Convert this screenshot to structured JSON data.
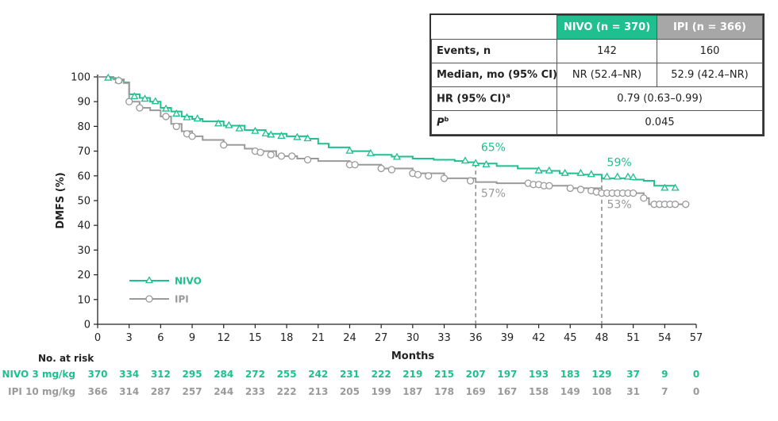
{
  "chart_data": {
    "type": "line",
    "xlabel": "Months",
    "ylabel": "DMFS (%)",
    "xlim": [
      0,
      57
    ],
    "ylim": [
      0,
      100
    ],
    "x_ticks": [
      0,
      3,
      6,
      9,
      12,
      15,
      18,
      21,
      24,
      27,
      30,
      33,
      36,
      39,
      42,
      45,
      48,
      51,
      54,
      57
    ],
    "y_ticks": [
      0,
      10,
      20,
      30,
      40,
      50,
      60,
      70,
      80,
      90,
      100
    ],
    "colors": {
      "nivo": "#1fbf8f",
      "ipi": "#9a9a9a",
      "reference": "#777777"
    },
    "series": [
      {
        "name": "NIVO",
        "marker": "triangle",
        "points": [
          [
            0,
            100
          ],
          [
            1,
            99.5
          ],
          [
            2,
            98.5
          ],
          [
            2.5,
            97.8
          ],
          [
            3,
            93
          ],
          [
            4,
            91.5
          ],
          [
            5,
            90
          ],
          [
            6,
            87.5
          ],
          [
            7,
            86
          ],
          [
            8,
            84
          ],
          [
            9,
            83
          ],
          [
            10,
            82
          ],
          [
            12,
            80.3
          ],
          [
            14,
            78.5
          ],
          [
            16,
            77
          ],
          [
            18,
            76
          ],
          [
            20,
            75
          ],
          [
            21,
            73
          ],
          [
            22,
            71.5
          ],
          [
            24,
            70
          ],
          [
            26,
            68.5
          ],
          [
            28,
            67.8
          ],
          [
            30,
            67
          ],
          [
            32,
            66.5
          ],
          [
            34,
            66
          ],
          [
            35,
            65.5
          ],
          [
            36,
            65
          ],
          [
            38,
            64
          ],
          [
            40,
            63
          ],
          [
            42,
            62
          ],
          [
            44,
            61
          ],
          [
            46,
            60.5
          ],
          [
            48,
            59
          ],
          [
            50,
            59
          ],
          [
            51,
            58.5
          ],
          [
            52,
            58
          ],
          [
            53,
            56
          ],
          [
            55,
            55
          ]
        ],
        "censor_marks": [
          [
            1,
            99.5
          ],
          [
            2,
            98.5
          ],
          [
            3.5,
            92
          ],
          [
            4.5,
            91
          ],
          [
            5.5,
            90
          ],
          [
            6.5,
            87
          ],
          [
            7.5,
            85
          ],
          [
            8.5,
            83.5
          ],
          [
            9.5,
            83
          ],
          [
            11.5,
            81
          ],
          [
            12.5,
            80.3
          ],
          [
            13.5,
            79
          ],
          [
            15,
            78
          ],
          [
            16,
            77
          ],
          [
            16.5,
            76.5
          ],
          [
            17.5,
            76
          ],
          [
            19,
            75.5
          ],
          [
            20,
            75
          ],
          [
            24,
            70
          ],
          [
            26,
            69
          ],
          [
            28.5,
            67.5
          ],
          [
            35,
            66
          ],
          [
            36,
            65
          ],
          [
            37,
            64.5
          ],
          [
            42,
            62
          ],
          [
            43,
            62
          ],
          [
            44.5,
            61
          ],
          [
            46,
            61
          ],
          [
            47,
            60.5
          ],
          [
            48.5,
            59.5
          ],
          [
            49.5,
            59.5
          ],
          [
            50.5,
            59.5
          ],
          [
            51,
            59.3
          ],
          [
            54,
            55
          ],
          [
            55,
            55
          ]
        ]
      },
      {
        "name": "IPI",
        "marker": "circle",
        "points": [
          [
            0,
            100
          ],
          [
            1.5,
            99
          ],
          [
            2.5,
            97.5
          ],
          [
            3,
            90
          ],
          [
            4,
            87.5
          ],
          [
            5,
            86.5
          ],
          [
            6,
            84
          ],
          [
            7,
            81
          ],
          [
            8,
            78
          ],
          [
            9,
            76
          ],
          [
            10,
            74.5
          ],
          [
            12,
            72.5
          ],
          [
            14,
            71
          ],
          [
            15,
            70
          ],
          [
            17,
            68
          ],
          [
            19,
            67
          ],
          [
            21,
            66
          ],
          [
            24,
            64.5
          ],
          [
            27,
            63
          ],
          [
            30,
            61
          ],
          [
            33,
            59
          ],
          [
            36,
            57.5
          ],
          [
            38,
            57
          ],
          [
            42,
            56
          ],
          [
            45,
            55
          ],
          [
            48,
            53
          ],
          [
            50,
            53
          ],
          [
            51,
            53
          ],
          [
            52,
            51
          ],
          [
            52.5,
            48.5
          ],
          [
            55,
            48.5
          ],
          [
            56,
            48.5
          ]
        ],
        "censor_marks": [
          [
            2,
            98.5
          ],
          [
            3,
            90
          ],
          [
            4,
            87.5
          ],
          [
            6.5,
            84
          ],
          [
            7.5,
            80
          ],
          [
            8.5,
            77
          ],
          [
            9,
            76
          ],
          [
            12,
            72.5
          ],
          [
            15,
            70
          ],
          [
            15.5,
            69.5
          ],
          [
            16.5,
            68.5
          ],
          [
            17.5,
            68
          ],
          [
            18.5,
            68
          ],
          [
            20,
            66.5
          ],
          [
            24,
            64.5
          ],
          [
            24.5,
            64.5
          ],
          [
            27,
            63
          ],
          [
            28,
            62.5
          ],
          [
            30,
            61
          ],
          [
            30.5,
            60.5
          ],
          [
            31.5,
            60
          ],
          [
            33,
            59
          ],
          [
            35.5,
            58
          ],
          [
            41,
            57
          ],
          [
            41.5,
            56.5
          ],
          [
            42,
            56.5
          ],
          [
            42.5,
            56
          ],
          [
            43,
            56
          ],
          [
            45,
            55
          ],
          [
            46,
            54.5
          ],
          [
            47,
            54
          ],
          [
            47.5,
            53.5
          ],
          [
            48,
            53
          ],
          [
            48.5,
            53
          ],
          [
            49,
            53
          ],
          [
            49.5,
            53
          ],
          [
            50,
            53
          ],
          [
            50.5,
            53
          ],
          [
            51,
            53
          ],
          [
            52,
            51
          ],
          [
            53,
            48.5
          ],
          [
            53.5,
            48.5
          ],
          [
            54,
            48.5
          ],
          [
            54.5,
            48.5
          ],
          [
            55,
            48.5
          ],
          [
            56,
            48.5
          ]
        ]
      }
    ],
    "reference_lines": [
      {
        "x": 36,
        "y_top": 65
      },
      {
        "x": 48,
        "y_top": 59
      }
    ],
    "annotations": [
      {
        "text": "65%",
        "x": 36.5,
        "y": 70,
        "series": "NIVO"
      },
      {
        "text": "57%",
        "x": 36.5,
        "y": 51.5,
        "series": "IPI"
      },
      {
        "text": "59%",
        "x": 48.5,
        "y": 64,
        "series": "NIVO"
      },
      {
        "text": "53%",
        "x": 48.5,
        "y": 47,
        "series": "IPI"
      }
    ],
    "legend": [
      {
        "label": "NIVO",
        "series": "NIVO"
      },
      {
        "label": "IPI",
        "series": "IPI"
      }
    ],
    "legend_position": "bottom-left",
    "risk_table": {
      "title": "No. at risk",
      "rows": [
        {
          "label": "NIVO 3 mg/kg",
          "series": "NIVO",
          "values": [
            "370",
            "334",
            "312",
            "295",
            "284",
            "272",
            "255",
            "242",
            "231",
            "222",
            "219",
            "215",
            "207",
            "197",
            "193",
            "183",
            "129",
            "37",
            "9",
            "0"
          ]
        },
        {
          "label": "IPI 10 mg/kg",
          "series": "IPI",
          "values": [
            "366",
            "314",
            "287",
            "257",
            "244",
            "233",
            "222",
            "213",
            "205",
            "199",
            "187",
            "178",
            "169",
            "167",
            "158",
            "149",
            "108",
            "31",
            "7",
            "0"
          ]
        }
      ]
    }
  },
  "stats_table": {
    "header": [
      "",
      "NIVO (n = 370)",
      "IPI (n = 366)"
    ],
    "rows": [
      {
        "label": "Events, n",
        "nivo": "142",
        "ipi": "160"
      },
      {
        "label": "Median, mo (95% CI)",
        "nivo": "NR (52.4–NR)",
        "ipi": "52.9 (42.4–NR)"
      }
    ],
    "hr_label": "HR (95% CI)",
    "hr_sup": "a",
    "hr_value": "0.79 (0.63–0.99)",
    "p_label": "P",
    "p_sup": "b",
    "p_value": "0.045"
  }
}
